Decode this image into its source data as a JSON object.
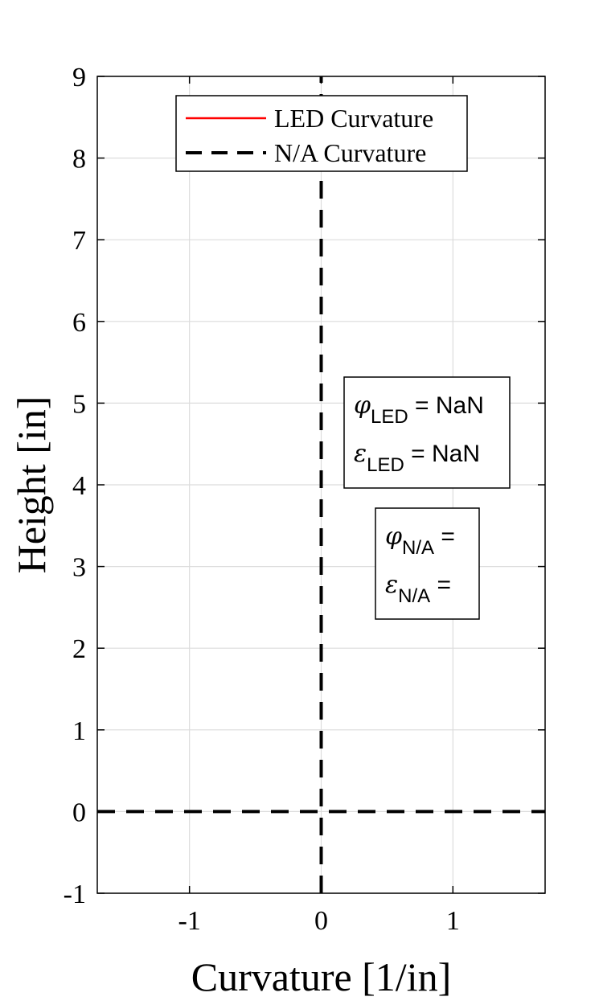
{
  "chart_data": {
    "type": "line",
    "xlabel": "Curvature  [1/in]",
    "ylabel": "Height [in]",
    "xlim": [
      -1.7,
      1.7
    ],
    "ylim": [
      -1,
      9
    ],
    "xticks": [
      -1,
      0,
      1
    ],
    "yticks": [
      -1,
      0,
      1,
      2,
      3,
      4,
      5,
      6,
      7,
      8,
      9
    ],
    "grid": true,
    "legend_position": "top",
    "series": [
      {
        "name": "LED Curvature",
        "color": "#ff0000",
        "style": "solid",
        "x": [],
        "y": []
      },
      {
        "name": "N/A Curvature",
        "color": "#000000",
        "style": "dashed",
        "x": [
          0,
          0
        ],
        "y": [
          -1,
          9
        ]
      }
    ],
    "reference_lines": [
      {
        "orientation": "horizontal",
        "value": 0,
        "color": "#000000",
        "style": "dashed"
      }
    ],
    "annotations": [
      {
        "lines": [
          {
            "symbol": "φ",
            "sub": "LED",
            "text": " = NaN"
          },
          {
            "symbol": "ε",
            "sub": "LED",
            "text": " = NaN"
          }
        ]
      },
      {
        "lines": [
          {
            "symbol": "φ",
            "sub": "N/A",
            "text": " ="
          },
          {
            "symbol": "ε",
            "sub": "N/A",
            "text": " ="
          }
        ]
      }
    ]
  }
}
